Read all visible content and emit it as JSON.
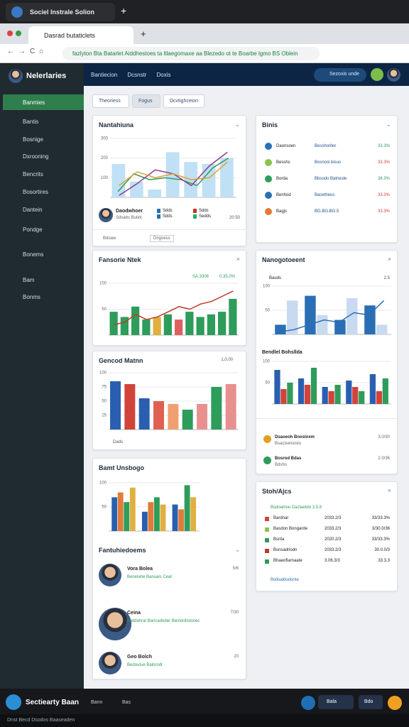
{
  "os_bar": {
    "tab": "Sociel Instrale Solion"
  },
  "browser": {
    "tab": "Dasrad butaticlets",
    "url": "fazlyton Bta Batarlet Aiddhestoes ta ltlaegomaxe aa Blezedo ot te Boarbe lgmo BS Oblein"
  },
  "app": {
    "title": "Nelerlaries",
    "nav": [
      "Bantiecion",
      "Dcsnstr",
      "Doxis"
    ],
    "search": "Sezoxis unde"
  },
  "sidebar": {
    "items": [
      "Banmies",
      "Bantis",
      "Bosnige",
      "Dxrooning",
      "Bencrits",
      "Bosortires",
      "Dantein",
      "Pondge",
      "Bonems",
      "Bam",
      "Bonms"
    ]
  },
  "tabs": [
    "Theoriess",
    "Fogus",
    "Dcvtighceion"
  ],
  "overview": {
    "title": "Nantahiuna",
    "person": "Daodwhoer",
    "role": "Sdvabs Butirk",
    "legend": [
      "Sdds",
      "Sdds",
      "Sdds",
      "Sedds"
    ],
    "value": "20.50",
    "footer": [
      "Bdoaw",
      "Dngoess"
    ],
    "chart": {
      "ylim": [
        0,
        300
      ],
      "yticks": [
        100,
        200,
        300
      ],
      "bars": [
        {
          "color": "#bfe0f5",
          "values": [
            170,
            80,
            40,
            230,
            180,
            170,
            200
          ]
        }
      ],
      "lines": [
        {
          "color": "#2e9c5a",
          "values": [
            30,
            120,
            90,
            100,
            90,
            60,
            150,
            200
          ]
        },
        {
          "color": "#8e3b8e",
          "values": [
            10,
            70,
            140,
            120,
            60,
            160,
            230
          ]
        },
        {
          "color": "#e0a030",
          "values": [
            60,
            130,
            100,
            120,
            90,
            100,
            180
          ]
        }
      ]
    }
  },
  "perf": {
    "title": "Fansorie Ntek",
    "values": [
      "SA.3306",
      "0.35.0%"
    ],
    "chart": {
      "ylim": [
        0,
        100
      ],
      "yticks": [
        50,
        100
      ],
      "bars": [
        {
          "colors": [
            "#2e9c5a",
            "#2e9c5a",
            "#2e9c5a",
            "#2e9c5a",
            "#e0b040",
            "#2e9c5a",
            "#e06060",
            "#2e9c5a",
            "#2e9c5a",
            "#2e9c5a",
            "#2e9c5a",
            "#2e9c5a"
          ],
          "values": [
            45,
            35,
            55,
            30,
            35,
            40,
            30,
            45,
            35,
            40,
            45,
            70
          ]
        }
      ],
      "lines": [
        {
          "color": "#c0392b",
          "values": [
            20,
            25,
            40,
            30,
            35,
            45,
            55,
            50,
            60,
            65,
            75,
            85
          ]
        }
      ]
    }
  },
  "general": {
    "title": "Gencod Matnn",
    "value": "1,0.00",
    "footer": "Dads",
    "chart": {
      "ylim": [
        0,
        100
      ],
      "yticks": [
        25,
        50,
        75,
        100
      ],
      "bars": [
        {
          "colors": [
            "#2a5fb0",
            "#d0443a",
            "#2a5fb0",
            "#e06050",
            "#f0a070",
            "#2e9c5a",
            "#e89090",
            "#2e9c5a",
            "#e89090"
          ],
          "values": [
            85,
            80,
            55,
            50,
            45,
            35,
            45,
            75,
            80
          ]
        }
      ]
    }
  },
  "bamt": {
    "title": "Bamt Unsbogo",
    "chart": {
      "ylim": [
        0,
        100
      ],
      "yticks": [
        50,
        100
      ],
      "bars": [
        {
          "color": "#2a5fb0",
          "values": [
            70,
            40,
            55
          ]
        },
        {
          "color": "#e07b39",
          "values": [
            80,
            60,
            45
          ]
        },
        {
          "color": "#2e9c5a",
          "values": [
            60,
            70,
            95
          ]
        },
        {
          "color": "#e0b040",
          "values": [
            90,
            55,
            70
          ]
        }
      ]
    }
  },
  "people": {
    "title": "Fantuhiedoems",
    "items": [
      {
        "name": "Vora Bolea",
        "detail": "Benelahe Banuais Ceat",
        "value": "5/6"
      },
      {
        "name": "Ceina",
        "detail": "Bieldahrat Bancadoder Benlordistonec",
        "value": "7/30"
      },
      {
        "name": "Geo Bolch",
        "detail": "Bedoutue Balnrodt",
        "value": "20"
      }
    ]
  },
  "binis": {
    "title": "Binis",
    "rows": [
      {
        "name": "Daonsoen",
        "label": "Besshoriter",
        "value": "33.3%",
        "color": "#2e9c5a"
      },
      {
        "name": "Besshs",
        "label": "Bosnosl bisus",
        "value": "33.3%",
        "color": "#d0443a"
      },
      {
        "name": "Borda",
        "label": "Bbsodo Batnesle",
        "value": "36.3%",
        "color": "#2e9c5a"
      },
      {
        "name": "Benhod",
        "label": "Bacetheus",
        "value": "33.3%",
        "color": "#d0443a"
      },
      {
        "name": "Bagjs",
        "label": "BG.BG.BG.5",
        "value": "33.3%",
        "color": "#d0443a"
      }
    ]
  },
  "mgmt": {
    "title": "Nanogotoeent",
    "sub": "Bauds",
    "value": "2.5",
    "sub2": "Bendlel Bohsllda",
    "chart": {
      "ylim": [
        0,
        100
      ],
      "yticks": [
        50,
        100
      ],
      "bars": [
        {
          "color": "#2a6fb5",
          "values": [
            20,
            80,
            30,
            60
          ]
        },
        {
          "color": "#c8daf0",
          "values": [
            70,
            40,
            75,
            20
          ]
        }
      ],
      "lines": [
        {
          "color": "#2a6fb5",
          "values": [
            5,
            10,
            20,
            30,
            25,
            45,
            40,
            70
          ]
        }
      ]
    },
    "chart2": {
      "ylim": [
        0,
        100
      ],
      "yticks": [
        50,
        100
      ],
      "bars": [
        {
          "color": "#2a5fb0",
          "values": [
            80,
            60,
            40,
            55,
            70
          ]
        },
        {
          "color": "#d0443a",
          "values": [
            35,
            45,
            30,
            40,
            30
          ]
        },
        {
          "color": "#2e9c5a",
          "values": [
            50,
            85,
            45,
            30,
            60
          ]
        }
      ]
    },
    "rows": [
      {
        "name": "Dsaoeoh Bnosloxm",
        "detail": "Bsaciseniosto",
        "value": "3.0/30"
      },
      {
        "name": "Bosrod Bdas",
        "detail": "Bdsho",
        "value": "2.0/36"
      }
    ]
  },
  "stats": {
    "title": "Stoh/Ajcs",
    "head": "Bsdoalnuu Dazlaetdo 3.5.8",
    "rows": [
      {
        "name": "Bardnar",
        "a": "2033.2/3",
        "b": "33/33.3%"
      },
      {
        "name": "Basdon Bongarde",
        "a": "2033.2/3",
        "b": "3/30.0/36"
      },
      {
        "name": "Bsnta",
        "a": "2020.2/3",
        "b": "33/33.3%"
      },
      {
        "name": "Bsnsadriodn",
        "a": "2033.2/3",
        "b": "30.0.0/3"
      },
      {
        "name": "Bhaeoflarnaate",
        "a": "3.06.3/3",
        "b": "33.3.3"
      }
    ],
    "footer": "Boiloaldodonta"
  },
  "taskbar": {
    "app": "Sectiearty Baan",
    "items": [
      "Bann",
      "Bas"
    ],
    "right": [
      "Bala",
      "Bdo"
    ]
  },
  "footer": "Dnst Becd Dsodos Baaseaden"
}
